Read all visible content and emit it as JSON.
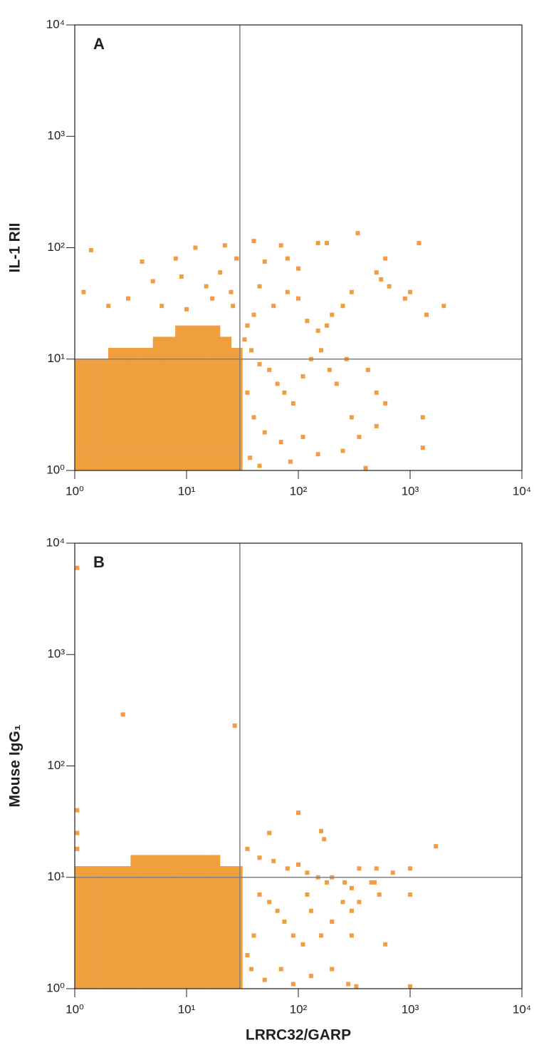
{
  "chart_data": [
    {
      "type": "scatter",
      "panel_label": "A",
      "y_label": "IL-1 RII",
      "log_x": true,
      "log_y": true,
      "xlim": [
        1,
        10000
      ],
      "ylim": [
        1,
        10000
      ],
      "xticks": [
        {
          "value": 1,
          "label": "10⁰"
        },
        {
          "value": 10,
          "label": "10¹"
        },
        {
          "value": 100,
          "label": "10²"
        },
        {
          "value": 1000,
          "label": "10³"
        },
        {
          "value": 10000,
          "label": "10⁴"
        }
      ],
      "yticks": [
        {
          "value": 1,
          "label": "10⁰"
        },
        {
          "value": 10,
          "label": "10¹"
        },
        {
          "value": 100,
          "label": "10²"
        },
        {
          "value": 1000,
          "label": "10³"
        },
        {
          "value": 10000,
          "label": "10⁴"
        }
      ],
      "quadrant": {
        "x": 30,
        "y": 10
      },
      "quadrant_color": "#808080",
      "series": [
        {
          "color": "#ef9f3e",
          "marker_size": 16,
          "x": [
            1.12,
            1.41,
            1.78,
            2.24,
            2.82,
            3.55,
            4.47,
            5.62,
            7.08,
            8.91,
            11.2,
            14.1,
            17.8,
            22.4,
            28.2,
            1.12,
            1.41,
            1.78,
            2.24,
            2.82,
            3.55,
            4.47,
            5.62,
            7.08,
            8.91,
            11.2,
            14.1,
            17.8,
            22.4,
            28.2,
            1.12,
            1.41,
            1.78,
            2.24,
            2.82,
            3.55,
            4.47,
            5.62,
            7.08,
            8.91,
            11.2,
            14.1,
            17.8,
            22.4,
            28.2,
            1.12,
            1.41,
            1.78,
            2.24,
            2.82,
            3.55,
            4.47,
            5.62,
            7.08,
            8.91,
            11.2,
            14.1,
            17.8,
            22.4,
            28.2,
            1.12,
            1.41,
            1.78,
            2.24,
            2.82,
            3.55,
            4.47,
            5.62,
            7.08,
            8.91,
            11.2,
            14.1,
            17.8,
            22.4,
            28.2,
            1.12,
            1.41,
            1.78,
            2.24,
            2.82,
            3.55,
            4.47,
            5.62,
            7.08,
            8.91,
            11.2,
            14.1,
            17.8,
            22.4,
            28.2,
            1.12,
            1.41,
            1.78,
            2.24,
            2.82,
            3.55,
            4.47,
            5.62,
            7.08,
            8.91,
            11.2,
            14.1,
            17.8,
            22.4,
            28.2,
            1.12,
            1.41,
            1.78,
            2.24,
            2.82,
            3.55,
            4.47,
            5.62,
            7.08,
            8.91,
            11.2,
            14.1,
            17.8,
            22.4,
            28.2,
            1.12,
            1.41,
            1.78,
            2.24,
            2.82,
            3.55,
            4.47,
            5.62,
            7.08,
            8.91,
            11.2,
            14.1,
            17.8,
            22.4,
            28.2,
            1.12,
            1.41,
            1.78,
            2.24,
            2.82,
            3.55,
            4.47,
            5.62,
            7.08,
            8.91,
            11.2,
            14.1,
            17.8,
            22.4,
            28.2,
            2.24,
            2.82,
            3.55,
            4.47,
            5.62,
            7.08,
            8.91,
            11.2,
            14.1,
            17.8,
            22.4,
            28.2,
            5.62,
            7.08,
            8.91,
            11.2,
            14.1,
            17.8,
            22.4,
            8.91,
            11.2,
            14.1,
            17.8
          ],
          "y": [
            1.12,
            1.12,
            1.12,
            1.12,
            1.12,
            1.12,
            1.12,
            1.12,
            1.12,
            1.12,
            1.12,
            1.12,
            1.12,
            1.12,
            1.12,
            1.41,
            1.41,
            1.41,
            1.41,
            1.41,
            1.41,
            1.41,
            1.41,
            1.41,
            1.41,
            1.41,
            1.41,
            1.41,
            1.41,
            1.41,
            1.78,
            1.78,
            1.78,
            1.78,
            1.78,
            1.78,
            1.78,
            1.78,
            1.78,
            1.78,
            1.78,
            1.78,
            1.78,
            1.78,
            1.78,
            2.24,
            2.24,
            2.24,
            2.24,
            2.24,
            2.24,
            2.24,
            2.24,
            2.24,
            2.24,
            2.24,
            2.24,
            2.24,
            2.24,
            2.24,
            2.82,
            2.82,
            2.82,
            2.82,
            2.82,
            2.82,
            2.82,
            2.82,
            2.82,
            2.82,
            2.82,
            2.82,
            2.82,
            2.82,
            2.82,
            3.55,
            3.55,
            3.55,
            3.55,
            3.55,
            3.55,
            3.55,
            3.55,
            3.55,
            3.55,
            3.55,
            3.55,
            3.55,
            3.55,
            3.55,
            4.47,
            4.47,
            4.47,
            4.47,
            4.47,
            4.47,
            4.47,
            4.47,
            4.47,
            4.47,
            4.47,
            4.47,
            4.47,
            4.47,
            4.47,
            5.62,
            5.62,
            5.62,
            5.62,
            5.62,
            5.62,
            5.62,
            5.62,
            5.62,
            5.62,
            5.62,
            5.62,
            5.62,
            5.62,
            5.62,
            7.08,
            7.08,
            7.08,
            7.08,
            7.08,
            7.08,
            7.08,
            7.08,
            7.08,
            7.08,
            7.08,
            7.08,
            7.08,
            7.08,
            7.08,
            8.91,
            8.91,
            8.91,
            8.91,
            8.91,
            8.91,
            8.91,
            8.91,
            8.91,
            8.91,
            8.91,
            8.91,
            8.91,
            8.91,
            8.91,
            11.2,
            11.2,
            11.2,
            11.2,
            11.2,
            11.2,
            11.2,
            11.2,
            11.2,
            11.2,
            11.2,
            11.2,
            14.1,
            14.1,
            14.1,
            14.1,
            14.1,
            14.1,
            14.1,
            17.8,
            17.8,
            17.8,
            17.8
          ]
        },
        {
          "color": "#ef9f3e",
          "marker_size": 6,
          "x": [
            1.4,
            4,
            5,
            8,
            9,
            12,
            22,
            28,
            40,
            50,
            70,
            80,
            100,
            150,
            180,
            340,
            1200,
            600,
            500,
            550,
            650,
            900,
            1000,
            1400,
            2000,
            300,
            250,
            200,
            180,
            150,
            120,
            100,
            80,
            60,
            45,
            40,
            35,
            33,
            38,
            45,
            55,
            65,
            75,
            90,
            110,
            130,
            160,
            190,
            220,
            270,
            300,
            420,
            500,
            600,
            1300,
            1300,
            500,
            350,
            250,
            150,
            110,
            70,
            50,
            40,
            35,
            37,
            45,
            85,
            400,
            20,
            15,
            25,
            2,
            1.2,
            3,
            6,
            10,
            17,
            26
          ],
          "y": [
            95,
            75,
            50,
            80,
            55,
            100,
            105,
            80,
            115,
            75,
            105,
            80,
            65,
            110,
            110,
            135,
            110,
            80,
            60,
            52,
            45,
            35,
            40,
            25,
            30,
            40,
            30,
            25,
            20,
            18,
            22,
            35,
            40,
            30,
            45,
            25,
            20,
            15,
            12,
            9,
            8,
            6,
            5,
            4,
            7,
            10,
            12,
            8,
            6,
            10,
            3,
            8,
            5,
            4,
            3,
            1.6,
            2.5,
            2,
            1.5,
            1.4,
            2,
            1.8,
            2.2,
            3,
            5,
            1.3,
            1.1,
            1.2,
            1.05,
            60,
            45,
            40,
            30,
            40,
            35,
            30,
            28,
            35,
            30
          ]
        }
      ]
    },
    {
      "type": "scatter",
      "panel_label": "B",
      "y_label": "Mouse IgG₁",
      "x_label": "LRRC32/GARP",
      "log_x": true,
      "log_y": true,
      "xlim": [
        1,
        10000
      ],
      "ylim": [
        1,
        10000
      ],
      "xticks": [
        {
          "value": 1,
          "label": "10⁰"
        },
        {
          "value": 10,
          "label": "10¹"
        },
        {
          "value": 100,
          "label": "10²"
        },
        {
          "value": 1000,
          "label": "10³"
        },
        {
          "value": 10000,
          "label": "10⁴"
        }
      ],
      "yticks": [
        {
          "value": 1,
          "label": "10⁰"
        },
        {
          "value": 10,
          "label": "10¹"
        },
        {
          "value": 100,
          "label": "10²"
        },
        {
          "value": 1000,
          "label": "10³"
        },
        {
          "value": 10000,
          "label": "10⁴"
        }
      ],
      "quadrant": {
        "x": 30,
        "y": 10
      },
      "quadrant_color": "#808080",
      "series": [
        {
          "color": "#ef9f3e",
          "marker_size": 16,
          "x": [
            1.12,
            1.41,
            1.78,
            2.24,
            2.82,
            3.55,
            4.47,
            5.62,
            7.08,
            8.91,
            11.2,
            14.1,
            17.8,
            22.4,
            28.2,
            1.12,
            1.41,
            1.78,
            2.24,
            2.82,
            3.55,
            4.47,
            5.62,
            7.08,
            8.91,
            11.2,
            14.1,
            17.8,
            22.4,
            28.2,
            1.12,
            1.41,
            1.78,
            2.24,
            2.82,
            3.55,
            4.47,
            5.62,
            7.08,
            8.91,
            11.2,
            14.1,
            17.8,
            22.4,
            28.2,
            1.12,
            1.41,
            1.78,
            2.24,
            2.82,
            3.55,
            4.47,
            5.62,
            7.08,
            8.91,
            11.2,
            14.1,
            17.8,
            22.4,
            28.2,
            1.12,
            1.41,
            1.78,
            2.24,
            2.82,
            3.55,
            4.47,
            5.62,
            7.08,
            8.91,
            11.2,
            14.1,
            17.8,
            22.4,
            28.2,
            1.12,
            1.41,
            1.78,
            2.24,
            2.82,
            3.55,
            4.47,
            5.62,
            7.08,
            8.91,
            11.2,
            14.1,
            17.8,
            22.4,
            28.2,
            1.12,
            1.41,
            1.78,
            2.24,
            2.82,
            3.55,
            4.47,
            5.62,
            7.08,
            8.91,
            11.2,
            14.1,
            17.8,
            22.4,
            28.2,
            1.12,
            1.41,
            1.78,
            2.24,
            2.82,
            3.55,
            4.47,
            5.62,
            7.08,
            8.91,
            11.2,
            14.1,
            17.8,
            22.4,
            28.2,
            1.12,
            1.41,
            1.78,
            2.24,
            2.82,
            3.55,
            4.47,
            5.62,
            7.08,
            8.91,
            11.2,
            14.1,
            17.8,
            22.4,
            28.2,
            1.12,
            1.41,
            1.78,
            2.24,
            2.82,
            3.55,
            4.47,
            5.62,
            7.08,
            8.91,
            11.2,
            14.1,
            17.8,
            22.4,
            28.2,
            1.12,
            1.41,
            1.78,
            2.24,
            2.82,
            3.55,
            4.47,
            5.62,
            7.08,
            8.91,
            11.2,
            14.1,
            17.8,
            22.4,
            28.2,
            3.55,
            4.47,
            5.62,
            7.08,
            8.91,
            11.2,
            14.1,
            17.8
          ],
          "y": [
            1.12,
            1.12,
            1.12,
            1.12,
            1.12,
            1.12,
            1.12,
            1.12,
            1.12,
            1.12,
            1.12,
            1.12,
            1.12,
            1.12,
            1.12,
            1.41,
            1.41,
            1.41,
            1.41,
            1.41,
            1.41,
            1.41,
            1.41,
            1.41,
            1.41,
            1.41,
            1.41,
            1.41,
            1.41,
            1.41,
            1.78,
            1.78,
            1.78,
            1.78,
            1.78,
            1.78,
            1.78,
            1.78,
            1.78,
            1.78,
            1.78,
            1.78,
            1.78,
            1.78,
            1.78,
            2.24,
            2.24,
            2.24,
            2.24,
            2.24,
            2.24,
            2.24,
            2.24,
            2.24,
            2.24,
            2.24,
            2.24,
            2.24,
            2.24,
            2.24,
            2.82,
            2.82,
            2.82,
            2.82,
            2.82,
            2.82,
            2.82,
            2.82,
            2.82,
            2.82,
            2.82,
            2.82,
            2.82,
            2.82,
            2.82,
            3.55,
            3.55,
            3.55,
            3.55,
            3.55,
            3.55,
            3.55,
            3.55,
            3.55,
            3.55,
            3.55,
            3.55,
            3.55,
            3.55,
            3.55,
            4.47,
            4.47,
            4.47,
            4.47,
            4.47,
            4.47,
            4.47,
            4.47,
            4.47,
            4.47,
            4.47,
            4.47,
            4.47,
            4.47,
            4.47,
            5.62,
            5.62,
            5.62,
            5.62,
            5.62,
            5.62,
            5.62,
            5.62,
            5.62,
            5.62,
            5.62,
            5.62,
            5.62,
            5.62,
            5.62,
            7.08,
            7.08,
            7.08,
            7.08,
            7.08,
            7.08,
            7.08,
            7.08,
            7.08,
            7.08,
            7.08,
            7.08,
            7.08,
            7.08,
            7.08,
            8.91,
            8.91,
            8.91,
            8.91,
            8.91,
            8.91,
            8.91,
            8.91,
            8.91,
            8.91,
            8.91,
            8.91,
            8.91,
            8.91,
            8.91,
            11.2,
            11.2,
            11.2,
            11.2,
            11.2,
            11.2,
            11.2,
            11.2,
            11.2,
            11.2,
            11.2,
            11.2,
            11.2,
            11.2,
            11.2,
            14.1,
            14.1,
            14.1,
            14.1,
            14.1,
            14.1,
            14.1,
            14.1
          ]
        },
        {
          "color": "#ef9f3e",
          "marker_size": 6,
          "x": [
            1.05,
            2.7,
            27,
            1.05,
            1.05,
            1.05,
            100,
            160,
            170,
            55,
            1700,
            35,
            45,
            60,
            80,
            100,
            120,
            150,
            180,
            200,
            260,
            300,
            350,
            500,
            700,
            1000,
            1000,
            600,
            530,
            450,
            350,
            300,
            250,
            200,
            160,
            130,
            110,
            90,
            75,
            65,
            55,
            45,
            40,
            35,
            38,
            50,
            70,
            90,
            130,
            200,
            280,
            330,
            1000,
            300,
            480,
            120
          ],
          "y": [
            6000,
            290,
            230,
            40,
            25,
            18,
            38,
            26,
            22,
            25,
            19,
            18,
            15,
            14,
            12,
            13,
            11,
            10,
            9,
            10,
            9,
            8,
            12,
            12,
            11,
            7,
            12,
            2.5,
            7,
            9,
            6,
            5,
            6,
            4,
            3,
            5,
            2.5,
            3,
            4,
            5,
            6,
            7,
            3,
            2,
            1.5,
            1.2,
            1.5,
            1.1,
            1.3,
            1.5,
            1.1,
            1.05,
            1.05,
            3,
            9,
            7
          ]
        }
      ]
    }
  ]
}
